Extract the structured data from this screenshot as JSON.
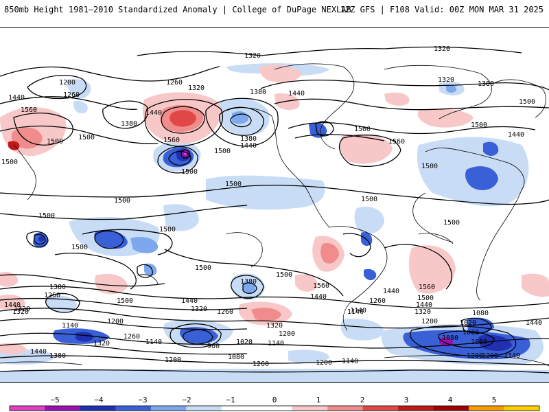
{
  "header": {
    "title": "850mb Height 1981–2010 Standardized Anomaly | College of DuPage NEXLAB",
    "run": "12Z GFS | F108 Valid: 00Z MON MAR 31 2025"
  },
  "map": {
    "contour_labels": [
      "1320",
      "1320",
      "1440",
      "1200",
      "1260",
      "1260",
      "1320",
      "1380",
      "1440",
      "1320",
      "1380",
      "1560",
      "1440",
      "1500",
      "1380",
      "1500",
      "1500",
      "1560",
      "1380",
      "1440",
      "1500",
      "1560",
      "1500",
      "1500",
      "1440",
      "1500",
      "1500",
      "1500",
      "1500",
      "1500",
      "1500",
      "1500",
      "1500",
      "1500",
      "1500",
      "1500",
      "1500",
      "1560",
      "1380",
      "1260",
      "1380",
      "1500",
      "1440",
      "1440",
      "1320",
      "1260",
      "1440",
      "1320",
      "1260",
      "1140",
      "1560",
      "1500",
      "1440",
      "1320",
      "1200",
      "1440",
      "1320",
      "1140",
      "1200",
      "1260",
      "1320",
      "1320",
      "1200",
      "1140",
      "1020",
      "1140",
      "1080",
      "1440",
      "1380",
      "1200",
      "960",
      "1020",
      "1080",
      "1200",
      "1140",
      "1260",
      "1200",
      "1140",
      "1080",
      "1020",
      "1080",
      "1200",
      "1140",
      "1440"
    ],
    "colors": {
      "background": "#ffffff",
      "contour": "#000000",
      "coastline": "#000000"
    }
  },
  "colorbar": {
    "ticks": [
      "−5",
      "−4",
      "−3",
      "−2",
      "−1",
      "0",
      "1",
      "2",
      "3",
      "4",
      "5"
    ],
    "colors": [
      "#e040c0",
      "#9a10b0",
      "#2030b0",
      "#3a60d8",
      "#7ea8ee",
      "#c8dcf6",
      "#ffffff",
      "#ffffff",
      "#f8c8c8",
      "#f08c8c",
      "#e04848",
      "#c01818",
      "#a00000",
      "#ff9a00",
      "#ffd000"
    ]
  }
}
